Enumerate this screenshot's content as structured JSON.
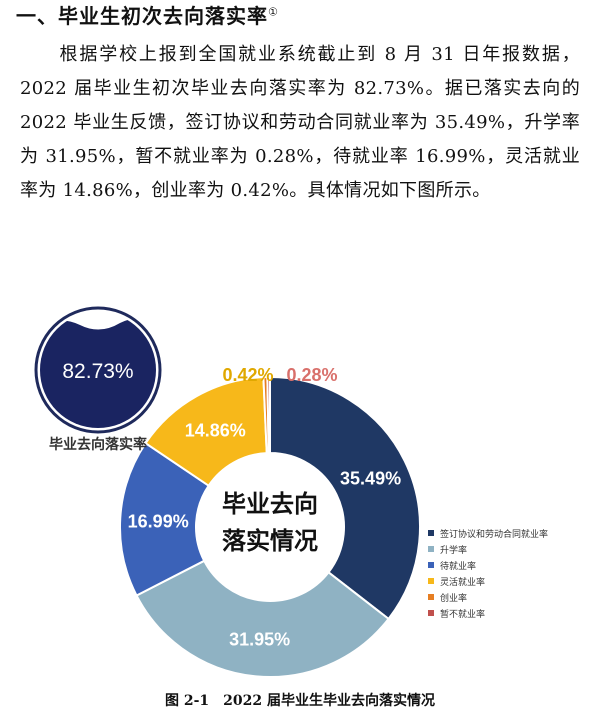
{
  "section": {
    "title": "一、毕业生初次去向落实率",
    "footnote_mark": "①"
  },
  "paragraph": "根据学校上报到全国就业系统截止到 8 月 31 日年报数据，2022 届毕业生初次毕业去向落实率为 82.73%。据已落实去向的 2022 毕业生反馈，签订协议和劳动合同就业率为 35.49%，升学率为 31.95%，暂不就业率为 0.28%，待就业率 16.99%，灵活就业率为 14.86%，创业率为 0.42%。具体情况如下图所示。",
  "rate_badge": {
    "value": "82.73%",
    "label": "毕业去向落实率"
  },
  "chart_data": {
    "type": "pie",
    "center_title": [
      "毕业去向",
      "落实情况"
    ],
    "legend_position": "right",
    "slices": [
      {
        "name": "签订协议和劳动合同就业率",
        "value": 35.49,
        "label": "35.49%",
        "color": "#1f3864"
      },
      {
        "name": "升学率",
        "value": 31.95,
        "label": "31.95%",
        "color": "#8fb2c3"
      },
      {
        "name": "待就业率",
        "value": 16.99,
        "label": "16.99%",
        "color": "#3b62b8"
      },
      {
        "name": "灵活就业率",
        "value": 14.86,
        "label": "14.86%",
        "color": "#f7b81a"
      },
      {
        "name": "创业率",
        "value": 0.42,
        "label": "0.42%",
        "color": "#e67e22"
      },
      {
        "name": "暂不就业率",
        "value": 0.28,
        "label": "0.28%",
        "color": "#c0504d"
      }
    ]
  },
  "caption": "图 2-1　2022 届毕业生毕业去向落实情况"
}
